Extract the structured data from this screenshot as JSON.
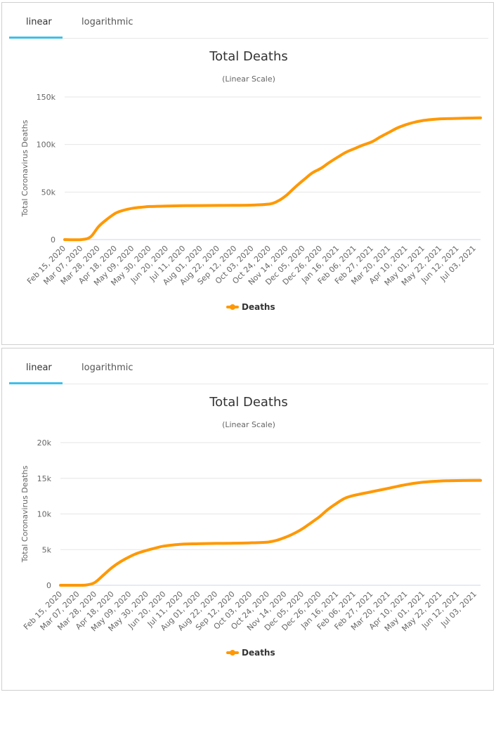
{
  "tabs": {
    "linear": "linear",
    "logarithmic": "logarithmic"
  },
  "colors": {
    "series": "#ff9800",
    "accent_tab": "#3fbfe8",
    "grid": "#e6e6e6"
  },
  "chart_data": [
    {
      "type": "line",
      "title": "Total Deaths",
      "subtitle": "(Linear Scale)",
      "ylabel": "Total Coronavirus Deaths",
      "xlabel": "",
      "ylim": [
        0,
        150000
      ],
      "yticks": [
        0,
        50000,
        100000,
        150000
      ],
      "ytick_labels": [
        "0",
        "50k",
        "100k",
        "150k"
      ],
      "xtick_labels": [
        "Feb 15, 2020",
        "Mar 07, 2020",
        "Mar 28, 2020",
        "Apr 18, 2020",
        "May 09, 2020",
        "May 30, 2020",
        "Jun 20, 2020",
        "Jul 11, 2020",
        "Aug 01, 2020",
        "Aug 22, 2020",
        "Sep 12, 2020",
        "Oct 03, 2020",
        "Oct 24, 2020",
        "Nov 14, 2020",
        "Dec 05, 2020",
        "Dec 26, 2020",
        "Jan 16, 2021",
        "Feb 06, 2021",
        "Feb 27, 2021",
        "Mar 20, 2021",
        "Apr 10, 2021",
        "May 01, 2021",
        "May 22, 2021",
        "Jun 12, 2021",
        "Jul 03, 2021"
      ],
      "legend": "bottom-center",
      "grid": true,
      "series": [
        {
          "name": "Deaths",
          "x": [
            "Feb 15, 2020",
            "Mar 07, 2020",
            "Mar 18, 2020",
            "Mar 28, 2020",
            "Apr 08, 2020",
            "Apr 18, 2020",
            "Apr 28, 2020",
            "May 09, 2020",
            "May 19, 2020",
            "May 30, 2020",
            "Jun 20, 2020",
            "Jul 11, 2020",
            "Aug 01, 2020",
            "Aug 22, 2020",
            "Sep 12, 2020",
            "Oct 03, 2020",
            "Oct 24, 2020",
            "Nov 04, 2020",
            "Nov 14, 2020",
            "Nov 24, 2020",
            "Dec 05, 2020",
            "Dec 15, 2020",
            "Dec 26, 2020",
            "Jan 05, 2021",
            "Jan 16, 2021",
            "Jan 26, 2021",
            "Feb 06, 2021",
            "Feb 16, 2021",
            "Feb 27, 2021",
            "Mar 09, 2021",
            "Mar 20, 2021",
            "Mar 30, 2021",
            "Apr 10, 2021",
            "Apr 20, 2021",
            "May 01, 2021",
            "May 11, 2021",
            "May 22, 2021",
            "Jun 12, 2021",
            "Jul 03, 2021",
            "Jul 10, 2021"
          ],
          "values": [
            0,
            0,
            3000,
            14000,
            22000,
            28000,
            31000,
            33000,
            34000,
            34800,
            35300,
            35600,
            35800,
            35900,
            36000,
            36300,
            37500,
            41000,
            47000,
            55000,
            63000,
            70000,
            75000,
            81000,
            87000,
            92000,
            96000,
            99500,
            103000,
            108000,
            113000,
            117500,
            121000,
            123500,
            125300,
            126300,
            127000,
            127500,
            127900,
            128000
          ]
        }
      ]
    },
    {
      "type": "line",
      "title": "Total Deaths",
      "subtitle": "(Linear Scale)",
      "ylabel": "Total Coronavirus Deaths",
      "xlabel": "",
      "ylim": [
        0,
        20000
      ],
      "yticks": [
        0,
        5000,
        10000,
        15000,
        20000
      ],
      "ytick_labels": [
        "0",
        "5k",
        "10k",
        "15k",
        "20k"
      ],
      "xtick_labels": [
        "Feb 15, 2020",
        "Mar 07, 2020",
        "Mar 28, 2020",
        "Apr 18, 2020",
        "May 09, 2020",
        "May 30, 2020",
        "Jun 20, 2020",
        "Jul 11, 2020",
        "Aug 01, 2020",
        "Aug 22, 2020",
        "Sep 12, 2020",
        "Oct 03, 2020",
        "Oct 24, 2020",
        "Nov 14, 2020",
        "Dec 05, 2020",
        "Dec 26, 2020",
        "Jan 16, 2021",
        "Feb 06, 2021",
        "Feb 27, 2021",
        "Mar 20, 2021",
        "Apr 10, 2021",
        "May 01, 2021",
        "May 22, 2021",
        "Jun 12, 2021",
        "Jul 03, 2021"
      ],
      "legend": "bottom-center",
      "grid": true,
      "series": [
        {
          "name": "Deaths",
          "x": [
            "Feb 15, 2020",
            "Mar 07, 2020",
            "Mar 18, 2020",
            "Mar 28, 2020",
            "Apr 08, 2020",
            "Apr 18, 2020",
            "Apr 28, 2020",
            "May 09, 2020",
            "May 19, 2020",
            "May 30, 2020",
            "Jun 09, 2020",
            "Jun 20, 2020",
            "Jul 11, 2020",
            "Aug 01, 2020",
            "Aug 22, 2020",
            "Sep 12, 2020",
            "Oct 03, 2020",
            "Oct 24, 2020",
            "Nov 04, 2020",
            "Nov 14, 2020",
            "Nov 24, 2020",
            "Dec 05, 2020",
            "Dec 15, 2020",
            "Dec 26, 2020",
            "Jan 05, 2021",
            "Jan 16, 2021",
            "Jan 26, 2021",
            "Feb 06, 2021",
            "Feb 27, 2021",
            "Mar 20, 2021",
            "Apr 10, 2021",
            "May 01, 2021",
            "May 22, 2021",
            "Jun 12, 2021",
            "Jul 03, 2021",
            "Jul 10, 2021"
          ],
          "values": [
            0,
            0,
            50,
            400,
            1500,
            2500,
            3300,
            4000,
            4500,
            4900,
            5200,
            5500,
            5750,
            5820,
            5870,
            5900,
            5950,
            6050,
            6300,
            6700,
            7200,
            7900,
            8700,
            9600,
            10600,
            11500,
            12200,
            12600,
            13100,
            13600,
            14100,
            14450,
            14620,
            14680,
            14700,
            14700
          ]
        }
      ]
    }
  ]
}
